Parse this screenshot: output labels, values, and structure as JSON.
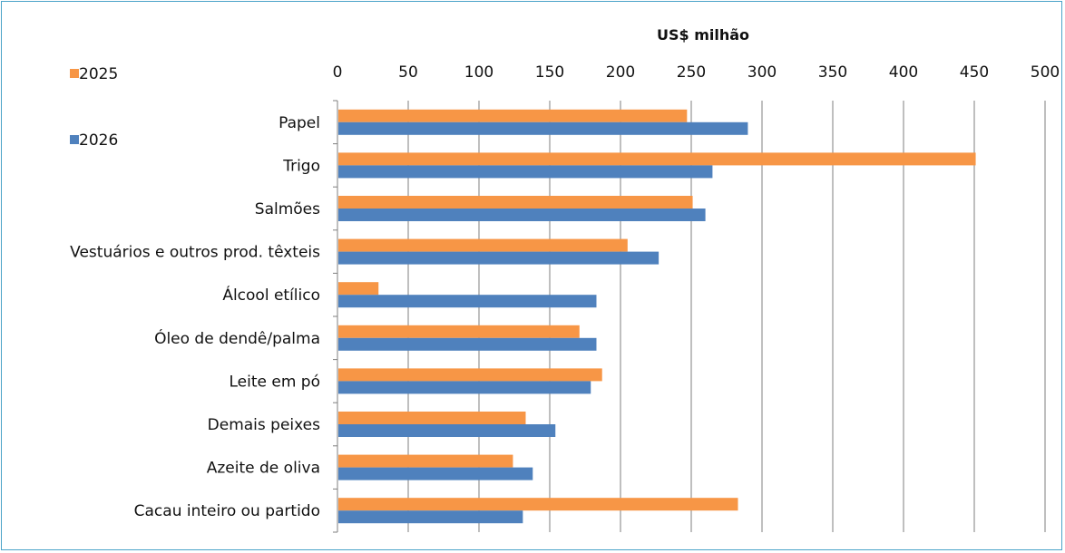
{
  "chart_data": {
    "type": "bar",
    "orientation": "horizontal",
    "title": "US$ milhão",
    "xlabel": "",
    "ylabel": "",
    "xlim": [
      0,
      500
    ],
    "x_ticks": [
      0,
      50,
      100,
      150,
      200,
      250,
      300,
      350,
      400,
      450,
      500
    ],
    "grid": true,
    "legend_position": "top-left",
    "categories": [
      "Papel",
      "Trigo",
      "Salmões",
      "Vestuários e outros prod. têxteis",
      "Álcool etílico",
      "Óleo de dendê/palma",
      "Leite em pó",
      "Demais peixes",
      "Azeite de oliva",
      "Cacau inteiro ou partido"
    ],
    "series": [
      {
        "name": "2025",
        "color": "#f79646",
        "values": [
          247,
          451,
          251,
          205,
          29,
          171,
          187,
          133,
          124,
          283
        ]
      },
      {
        "name": "2026",
        "color": "#4f81bd",
        "values": [
          290,
          265,
          260,
          227,
          183,
          183,
          179,
          154,
          138,
          131
        ]
      }
    ]
  }
}
